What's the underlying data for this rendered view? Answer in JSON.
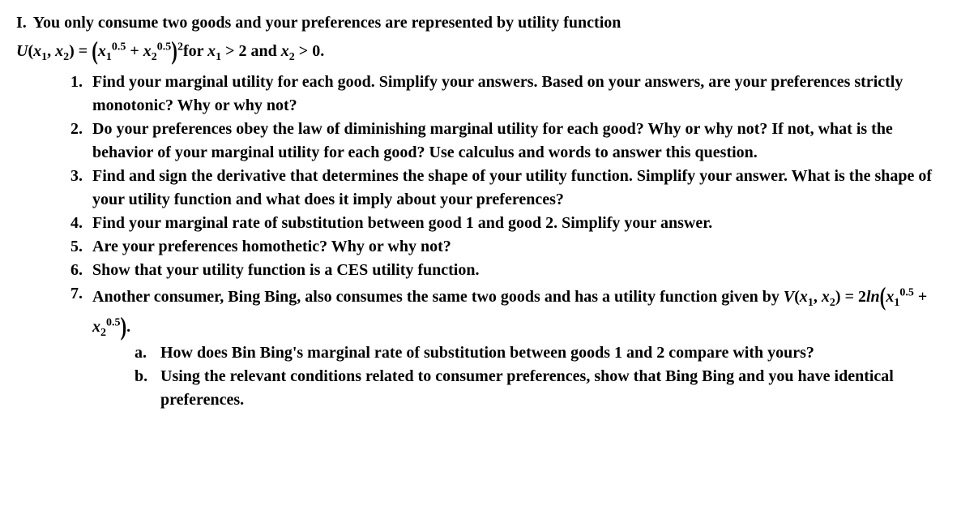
{
  "main": {
    "roman": "I.",
    "heading": "You only consume two goods and your preferences are represented by utility function"
  },
  "utilityLine": {
    "prefix1": "U",
    "prefix2": "x",
    "sub1": "1",
    "prefix3": "x",
    "sub2": "2",
    "eq": "=",
    "term1base": "x",
    "term1sub": "1",
    "term1sup": "0.5",
    "plus": "+",
    "term2base": "x",
    "term2sub": "2",
    "term2sup": "0.5",
    "outerSup": "2",
    "for": "for",
    "cond1a": "x",
    "cond1sub": "1",
    "cond1op": "> 2 and",
    "cond2a": "x",
    "cond2sub": "2",
    "cond2op": "> 0."
  },
  "q": [
    {
      "n": "1.",
      "t": "Find your marginal utility for each good. Simplify your answers. Based on your answers, are your preferences strictly monotonic? Why or why not?"
    },
    {
      "n": "2.",
      "t": "Do your preferences obey the law of diminishing marginal utility for each good? Why or why not? If not, what is the behavior of your marginal utility for each good? Use calculus and words to answer this question."
    },
    {
      "n": "3.",
      "t": "Find and sign the derivative that determines the shape of your utility function. Simplify your answer. What is the shape of your utility function and what does it imply about your preferences?"
    },
    {
      "n": "4.",
      "t": "Find your marginal rate of substitution between good 1 and good 2. Simplify your answer."
    },
    {
      "n": "5.",
      "t": "Are your preferences homothetic? Why or why not?"
    },
    {
      "n": "6.",
      "t": "Show that your utility function is a CES utility function."
    }
  ],
  "q7": {
    "n": "7.",
    "lead": "Another consumer, Bing Bing, also consumes the same two goods and has a utility function given by ",
    "V": "V",
    "x": "x",
    "sub1": "1",
    "sub2": "2",
    "eq": "=",
    "coef": "2",
    "ln": "ln",
    "term1base": "x",
    "term1sub": "1",
    "term1sup": "0.5",
    "plus": "+",
    "term2base": "x",
    "term2sub": "2",
    "term2sup": "0.5",
    "tail": "."
  },
  "sub": [
    {
      "a": "a.",
      "t": "How does Bin Bing's marginal rate of substitution between goods 1 and 2 compare with yours?"
    },
    {
      "a": "b.",
      "t": "Using the relevant conditions related to consumer preferences, show that Bing Bing and you have identical preferences."
    }
  ]
}
